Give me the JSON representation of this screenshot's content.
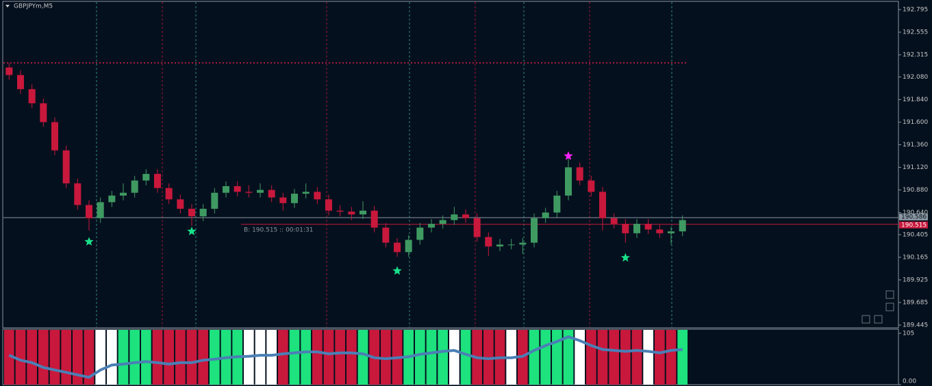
{
  "chart_data": [
    {
      "type": "candlestick",
      "title": "GBPJPYm,M5",
      "open": [
        192.18,
        192.1,
        191.95,
        191.8,
        191.6,
        191.3,
        190.95,
        190.72,
        190.58,
        190.75,
        190.82,
        190.85,
        190.98,
        191.05,
        190.9,
        190.78,
        190.68,
        190.6,
        190.68,
        190.85,
        190.92,
        190.86,
        190.85,
        190.88,
        190.8,
        190.74,
        190.84,
        190.86,
        190.78,
        190.66,
        190.65,
        190.62,
        190.66,
        190.48,
        190.32,
        190.22,
        190.35,
        190.48,
        190.52,
        190.56,
        190.62,
        190.58,
        190.38,
        190.28,
        190.3,
        190.3,
        190.32,
        190.58,
        190.64,
        190.82,
        191.12,
        190.98,
        190.86,
        190.58,
        190.52,
        190.42,
        190.52,
        190.46,
        190.42,
        190.44
      ],
      "high": [
        192.23,
        192.15,
        192.0,
        191.85,
        191.65,
        191.35,
        191.0,
        190.77,
        190.8,
        190.87,
        190.95,
        191.03,
        191.1,
        191.1,
        190.95,
        190.83,
        190.73,
        190.73,
        190.9,
        190.97,
        190.97,
        190.93,
        190.95,
        190.93,
        190.85,
        190.89,
        190.95,
        190.91,
        190.83,
        190.72,
        190.7,
        190.76,
        190.71,
        190.53,
        190.37,
        190.4,
        190.53,
        190.57,
        190.61,
        190.7,
        190.67,
        190.63,
        190.43,
        190.36,
        190.36,
        190.37,
        190.63,
        190.69,
        190.87,
        191.22,
        191.17,
        191.03,
        190.91,
        190.63,
        190.57,
        190.57,
        190.57,
        190.51,
        190.49,
        190.61
      ],
      "low": [
        192.05,
        191.9,
        191.75,
        191.55,
        191.25,
        190.9,
        190.67,
        190.45,
        190.53,
        190.7,
        190.77,
        190.8,
        190.93,
        190.85,
        190.73,
        190.63,
        190.5,
        190.55,
        190.63,
        190.8,
        190.81,
        190.8,
        190.8,
        190.75,
        190.66,
        190.69,
        190.79,
        190.73,
        190.61,
        190.6,
        190.56,
        190.57,
        190.43,
        190.27,
        190.17,
        190.17,
        190.3,
        190.43,
        190.47,
        190.51,
        190.53,
        190.33,
        190.18,
        190.23,
        190.25,
        190.2,
        190.27,
        190.53,
        190.59,
        190.77,
        190.93,
        190.81,
        190.45,
        190.47,
        190.32,
        190.37,
        190.41,
        190.37,
        190.3,
        190.39
      ],
      "close": [
        192.1,
        191.95,
        191.8,
        191.6,
        191.3,
        190.95,
        190.72,
        190.58,
        190.75,
        190.82,
        190.85,
        190.98,
        191.05,
        190.9,
        190.78,
        190.68,
        190.6,
        190.68,
        190.85,
        190.92,
        190.86,
        190.85,
        190.88,
        190.8,
        190.74,
        190.84,
        190.86,
        190.78,
        190.66,
        190.65,
        190.62,
        190.66,
        190.48,
        190.32,
        190.22,
        190.35,
        190.48,
        190.52,
        190.56,
        190.62,
        190.58,
        190.38,
        190.28,
        190.3,
        190.3,
        190.32,
        190.58,
        190.64,
        190.82,
        191.12,
        190.98,
        190.86,
        190.58,
        190.52,
        190.42,
        190.52,
        190.46,
        190.42,
        190.44,
        190.56
      ],
      "up_color": "#3f9a62",
      "down_color": "#c8183c",
      "ylim": [
        189.416,
        192.882
      ],
      "yticks": [
        {
          "value": 192.795,
          "label": "192.795"
        },
        {
          "value": 192.555,
          "label": "192.555"
        },
        {
          "value": 192.315,
          "label": "192.315"
        },
        {
          "value": 192.08,
          "label": "192.080"
        },
        {
          "value": 191.84,
          "label": "191.840"
        },
        {
          "value": 191.6,
          "label": "191.600"
        },
        {
          "value": 191.36,
          "label": "191.360"
        },
        {
          "value": 191.12,
          "label": "191.120"
        },
        {
          "value": 190.88,
          "label": "190.880"
        },
        {
          "value": 190.64,
          "label": "190.640"
        },
        {
          "value": 190.405,
          "label": "190.405"
        },
        {
          "value": 190.165,
          "label": "190.165"
        },
        {
          "value": 189.925,
          "label": "189.925"
        },
        {
          "value": 189.685,
          "label": "189.685"
        },
        {
          "value": 189.445,
          "label": "189.445"
        }
      ],
      "level": {
        "value": 192.229,
        "color": "#e0204a"
      },
      "price_lines": [
        {
          "value": 190.586,
          "color": "#8a96a0"
        },
        {
          "value": 190.515,
          "color": "#c8183c"
        }
      ],
      "annotation": "B: 190.515 :: 00:01:31",
      "markers": [
        {
          "index": 7,
          "value": 190.33,
          "color": "#19e08a"
        },
        {
          "index": 16,
          "value": 190.44,
          "color": "#19e08a"
        },
        {
          "index": 34,
          "value": 190.02,
          "color": "#19e08a"
        },
        {
          "index": 49,
          "value": 191.24,
          "color": "#ff20ff"
        },
        {
          "index": 54,
          "value": 190.16,
          "color": "#19e08a"
        }
      ]
    },
    {
      "type": "line",
      "values": [
        60,
        50,
        45,
        35,
        30,
        25,
        20,
        15,
        30,
        40,
        42,
        45,
        47,
        45,
        42,
        45,
        45,
        50,
        52,
        55,
        57,
        58,
        60,
        60,
        63,
        65,
        67,
        67,
        63,
        65,
        65,
        63,
        55,
        53,
        55,
        57,
        62,
        65,
        68,
        70,
        62,
        55,
        53,
        55,
        55,
        58,
        70,
        80,
        88,
        98,
        90,
        80,
        72,
        70,
        68,
        70,
        68,
        65,
        70,
        72
      ],
      "color": "#4a7fb5",
      "bar_colors": [
        "#c8183c",
        "#c8183c",
        "#c8183c",
        "#c8183c",
        "#c8183c",
        "#c8183c",
        "#c8183c",
        "#c8183c",
        "#ffffff",
        "#ffffff",
        "#1de27e",
        "#1de27e",
        "#1de27e",
        "#c8183c",
        "#c8183c",
        "#c8183c",
        "#c8183c",
        "#c8183c",
        "#1de27e",
        "#1de27e",
        "#1de27e",
        "#ffffff",
        "#ffffff",
        "#ffffff",
        "#c8183c",
        "#1de27e",
        "#1de27e",
        "#c8183c",
        "#c8183c",
        "#c8183c",
        "#c8183c",
        "#1de27e",
        "#c8183c",
        "#c8183c",
        "#c8183c",
        "#1de27e",
        "#1de27e",
        "#1de27e",
        "#1de27e",
        "#ffffff",
        "#1de27e",
        "#c8183c",
        "#c8183c",
        "#c8183c",
        "#ffffff",
        "#c8183c",
        "#1de27e",
        "#1de27e",
        "#1de27e",
        "#1de27e",
        "#ffffff",
        "#c8183c",
        "#c8183c",
        "#c8183c",
        "#c8183c",
        "#c8183c",
        "#ffffff",
        "#c8183c",
        "#c8183c",
        "#1de27e"
      ],
      "ylim": [
        0,
        112
      ],
      "yticks": [
        105,
        {
          "value": 0,
          "label": "0.00"
        }
      ]
    }
  ]
}
